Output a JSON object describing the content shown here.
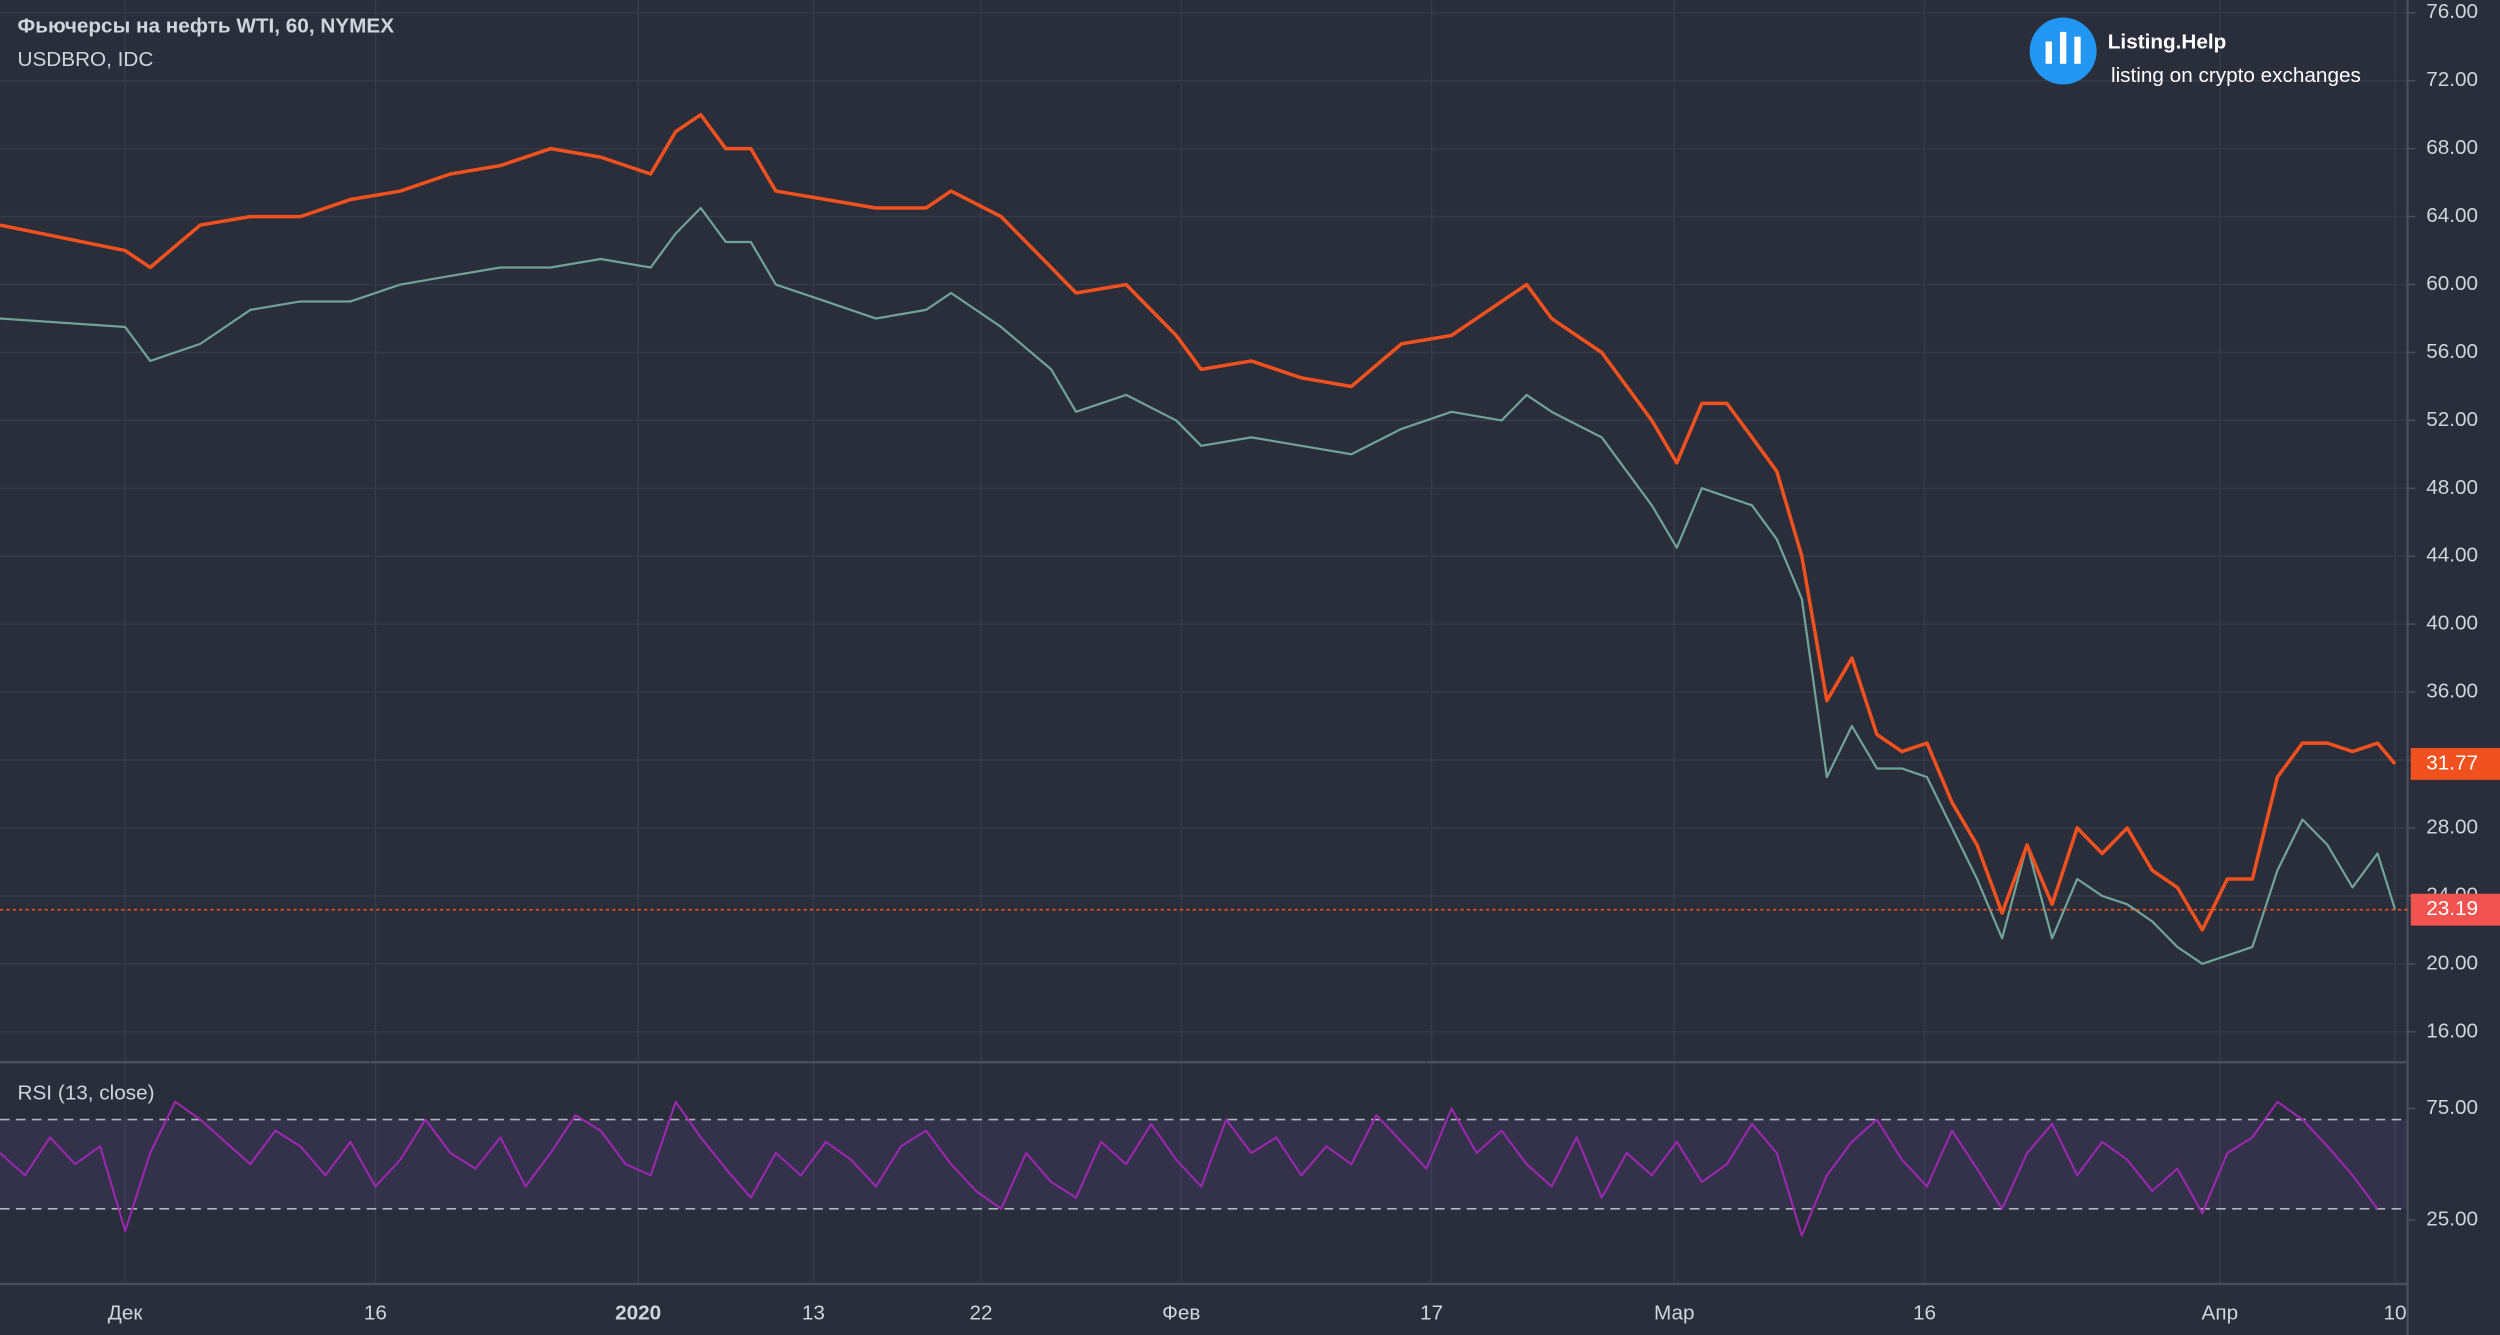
{
  "chart_data": [
    {
      "type": "line",
      "title": "Фьючерсы на нефть WTI, 60, NYMEX",
      "subtitle": "USDBRO, IDC",
      "x": [
        0,
        5,
        6,
        8,
        10,
        12,
        14,
        16,
        18,
        20,
        22,
        24,
        26,
        27,
        28,
        29,
        30,
        31,
        33,
        35,
        37,
        38,
        40,
        42,
        43,
        45,
        47,
        48,
        50,
        52,
        54,
        56,
        58,
        60,
        61,
        62,
        64,
        66,
        67,
        68,
        69,
        70,
        71,
        72,
        73,
        74,
        75,
        76,
        77,
        78,
        79,
        80,
        81,
        82,
        83,
        84,
        85,
        86,
        87,
        88,
        89,
        90,
        91,
        92,
        93,
        94,
        95,
        95.7
      ],
      "series": [
        {
          "color": "#f0511e",
          "values": [
            63.5,
            62,
            61,
            63.5,
            64,
            64,
            65,
            65.5,
            66.5,
            67,
            68,
            67.5,
            66.5,
            69,
            70,
            68,
            68,
            65.5,
            65,
            64.5,
            64.5,
            65.5,
            64,
            61,
            59.5,
            60,
            57,
            55,
            55.5,
            54.5,
            54,
            56.5,
            57,
            59,
            60,
            58,
            56,
            52,
            49.5,
            53,
            53,
            51,
            49,
            44,
            35.5,
            38,
            33.5,
            32.5,
            33,
            29.5,
            27,
            23,
            27,
            23.5,
            28,
            26.5,
            28,
            25.5,
            24.5,
            22,
            25,
            25,
            31,
            33,
            33,
            32.5,
            33,
            31.77
          ]
        },
        {
          "color": "#6fa398",
          "values": [
            58,
            57.5,
            55.5,
            56.5,
            58.5,
            59,
            59,
            60,
            60.5,
            61,
            61,
            61.5,
            61,
            63,
            64.5,
            62.5,
            62.5,
            60,
            59,
            58,
            58.5,
            59.5,
            57.5,
            55,
            52.5,
            53.5,
            52,
            50.5,
            51,
            50.5,
            50,
            51.5,
            52.5,
            52,
            53.5,
            52.5,
            51,
            47,
            44.5,
            48,
            47.5,
            47,
            45,
            41.5,
            31,
            34,
            31.5,
            31.5,
            31,
            28,
            25,
            21.5,
            27,
            21.5,
            25,
            24,
            23.5,
            22.5,
            21,
            20,
            20.5,
            21,
            25.5,
            28.5,
            27,
            24.5,
            26.5,
            23.19
          ]
        }
      ],
      "xlim": [
        0,
        96.2
      ],
      "xticks": [
        {
          "value": 5,
          "label": "Дек"
        },
        {
          "value": 15,
          "label": "16"
        },
        {
          "value": 25.5,
          "label": "2020"
        },
        {
          "value": 32.5,
          "label": "13"
        },
        {
          "value": 39.2,
          "label": "22"
        },
        {
          "value": 47.2,
          "label": "Фев"
        },
        {
          "value": 57.2,
          "label": "17"
        },
        {
          "value": 66.9,
          "label": "Мар"
        },
        {
          "value": 76.9,
          "label": "16"
        },
        {
          "value": 88.7,
          "label": "Апр"
        },
        {
          "value": 95.7,
          "label": "10"
        }
      ],
      "ylim": [
        14.3,
        76.75
      ],
      "yticks": [
        {
          "value": 16,
          "label": "16.00"
        },
        {
          "value": 20,
          "label": "20.00"
        },
        {
          "value": 24,
          "label": "24.00"
        },
        {
          "value": 28,
          "label": "28.00"
        },
        {
          "value": 32,
          "label": "32.00"
        },
        {
          "value": 36,
          "label": "36.00"
        },
        {
          "value": 40,
          "label": "40.00"
        },
        {
          "value": 44,
          "label": "44.00"
        },
        {
          "value": 48,
          "label": "48.00"
        },
        {
          "value": 52,
          "label": "52.00"
        },
        {
          "value": 56,
          "label": "56.00"
        },
        {
          "value": 60,
          "label": "60.00"
        },
        {
          "value": 64,
          "label": "64.00"
        },
        {
          "value": 68,
          "label": "68.00"
        },
        {
          "value": 72,
          "label": "72.00"
        },
        {
          "value": 76,
          "label": "76.00"
        }
      ],
      "grid": true
    },
    {
      "type": "line",
      "title": "RSI (13, close)",
      "color": "#9c27b0",
      "x": [
        0,
        1,
        2,
        3,
        4,
        5,
        6,
        7,
        8,
        9,
        10,
        11,
        12,
        13,
        14,
        15,
        16,
        17,
        18,
        19,
        20,
        21,
        22,
        23,
        24,
        25,
        26,
        27,
        28,
        29,
        30,
        31,
        32,
        33,
        34,
        35,
        36,
        37,
        38,
        39,
        40,
        41,
        42,
        43,
        44,
        45,
        46,
        47,
        48,
        49,
        50,
        51,
        52,
        53,
        54,
        55,
        56,
        57,
        58,
        59,
        60,
        61,
        62,
        63,
        64,
        65,
        66,
        67,
        68,
        69,
        70,
        71,
        72,
        73,
        74,
        75,
        76,
        77,
        78,
        79,
        80,
        81,
        82,
        83,
        84,
        85,
        86,
        87,
        88,
        89,
        90,
        91,
        92,
        93,
        94,
        95
      ],
      "values": [
        55,
        45,
        62,
        50,
        58,
        20,
        55,
        78,
        70,
        60,
        50,
        65,
        58,
        45,
        60,
        40,
        52,
        70,
        55,
        48,
        62,
        40,
        55,
        72,
        65,
        50,
        45,
        78,
        62,
        48,
        35,
        55,
        45,
        60,
        52,
        40,
        58,
        65,
        50,
        38,
        30,
        55,
        42,
        35,
        60,
        50,
        68,
        52,
        40,
        70,
        55,
        62,
        45,
        58,
        50,
        72,
        60,
        48,
        75,
        55,
        65,
        50,
        40,
        62,
        35,
        55,
        45,
        60,
        42,
        50,
        68,
        55,
        18,
        45,
        60,
        70,
        52,
        40,
        65,
        48,
        30,
        55,
        68,
        45,
        60,
        52,
        38,
        48,
        28,
        55,
        62,
        78,
        70,
        58,
        45,
        30
      ],
      "xlim": [
        0,
        96.2
      ],
      "ylim": [
        -3,
        95
      ],
      "bands": [
        70,
        30
      ],
      "yticks": [
        {
          "value": 75,
          "label": "75.00"
        },
        {
          "value": 25,
          "label": "25.00"
        }
      ]
    }
  ],
  "logo": {
    "name": "Listing.Help",
    "tagline": "listing on crypto exchanges"
  }
}
